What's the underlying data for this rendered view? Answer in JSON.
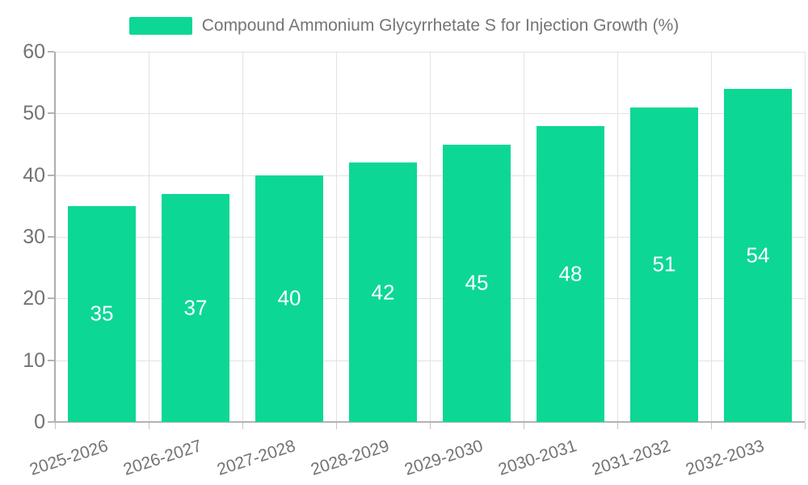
{
  "legend": {
    "label": "Compound Ammonium Glycyrrhetate S for Injection Growth (%)"
  },
  "chart_data": {
    "type": "bar",
    "title": "Compound Ammonium Glycyrrhetate S for Injection Growth (%)",
    "series_name": "Compound Ammonium Glycyrrhetate S for Injection Growth (%)",
    "categories": [
      "2025-2026",
      "2026-2027",
      "2027-2028",
      "2028-2029",
      "2029-2030",
      "2030-2031",
      "2031-2032",
      "2032-2033"
    ],
    "values": [
      35,
      37,
      40,
      42,
      45,
      48,
      51,
      54
    ],
    "value_labels": [
      "35",
      "37",
      "40",
      "42",
      "45",
      "48",
      "51",
      "54"
    ],
    "ytick_labels": [
      "0",
      "10",
      "20",
      "30",
      "40",
      "50",
      "60"
    ],
    "ylim": [
      0,
      60
    ],
    "ytick_step": 10,
    "xlabel": "",
    "ylabel": "",
    "grid": true,
    "legend_position": "top",
    "bar_color": "#0dd795",
    "value_label_color": "#ffffff",
    "axis_text_color": "#737373",
    "legend_text_color": "#757575",
    "gridline_color": "#e2e2e2"
  }
}
